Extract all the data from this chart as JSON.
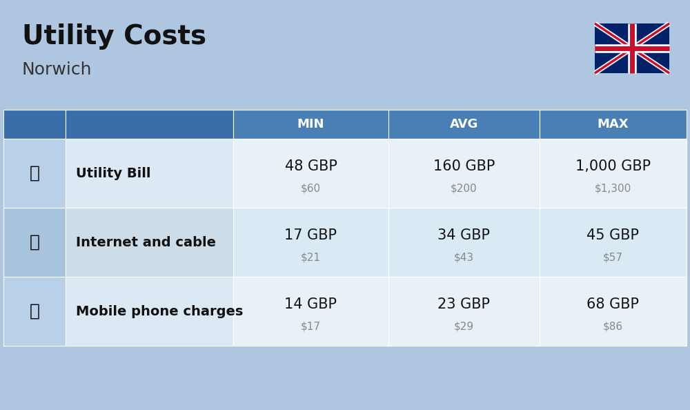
{
  "title": "Utility Costs",
  "subtitle": "Norwich",
  "background_color": "#aec6e0",
  "header_bg_color": "#4a7fb5",
  "header_text_color": "#ffffff",
  "col_headers": [
    "MIN",
    "AVG",
    "MAX"
  ],
  "rows": [
    {
      "label": "Utility Bill",
      "min_gbp": "48 GBP",
      "min_usd": "$60",
      "avg_gbp": "160 GBP",
      "avg_usd": "$200",
      "max_gbp": "1,000 GBP",
      "max_usd": "$1,300"
    },
    {
      "label": "Internet and cable",
      "min_gbp": "17 GBP",
      "min_usd": "$21",
      "avg_gbp": "34 GBP",
      "avg_usd": "$43",
      "max_gbp": "45 GBP",
      "max_usd": "$57"
    },
    {
      "label": "Mobile phone charges",
      "min_gbp": "14 GBP",
      "min_usd": "$17",
      "avg_gbp": "23 GBP",
      "avg_usd": "$29",
      "max_gbp": "68 GBP",
      "max_usd": "$86"
    }
  ],
  "title_fontsize": 28,
  "subtitle_fontsize": 18,
  "header_fontsize": 13,
  "cell_fontsize_gbp": 15,
  "cell_fontsize_usd": 11,
  "label_fontsize": 14,
  "row_colors_icon": [
    "#b8d0e8",
    "#a8c4dc",
    "#b8d0e8"
  ],
  "row_colors_label": [
    "#dce8f4",
    "#ccdde9",
    "#dce8f4"
  ],
  "row_colors_data": [
    "#e8f1f8",
    "#daeaf5",
    "#e8f1f8"
  ],
  "header_icon_color": "#3a6ea8",
  "header_label_color": "#3a6ea8",
  "flag_blue": "#012169",
  "flag_red": "#C8102E"
}
